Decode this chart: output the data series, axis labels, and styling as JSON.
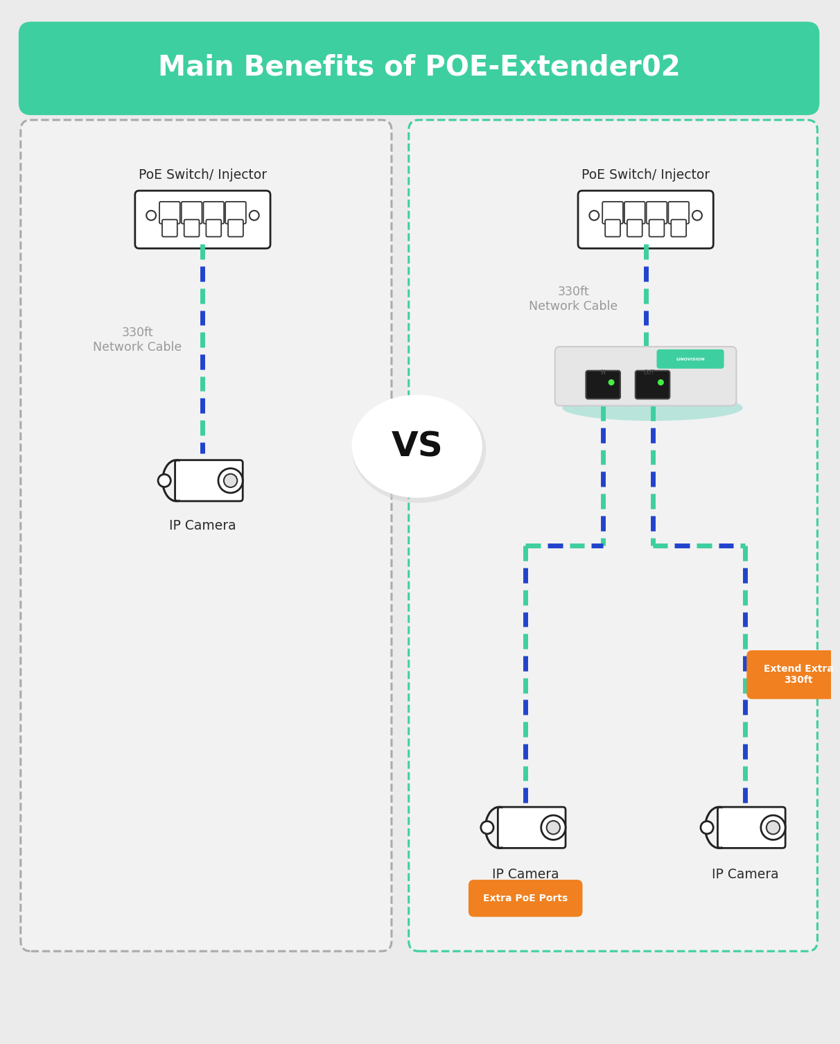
{
  "title": "Main Benefits of POE-Extender02",
  "title_bg_color": "#3ecfa0",
  "title_text_color": "#ffffff",
  "bg_color": "#ebebeb",
  "left_box_border": "#aaaaaa",
  "right_box_border": "#3ecfa0",
  "cable_green": "#3ecfa0",
  "cable_blue": "#2244cc",
  "vs_text": "VS",
  "left_label_switch": "PoE Switch/ Injector",
  "left_label_cable": "330ft\nNetwork Cable",
  "left_label_camera": "IP Camera",
  "right_label_switch": "PoE Switch/ Injector",
  "right_label_cable": "330ft\nNetwork Cable",
  "right_label_camera1": "IP Camera",
  "right_label_camera2": "IP Camera",
  "badge_orange": "#f08020",
  "badge_text1": "Extra PoE Ports",
  "badge_text2": "Extend Extra\n330ft"
}
